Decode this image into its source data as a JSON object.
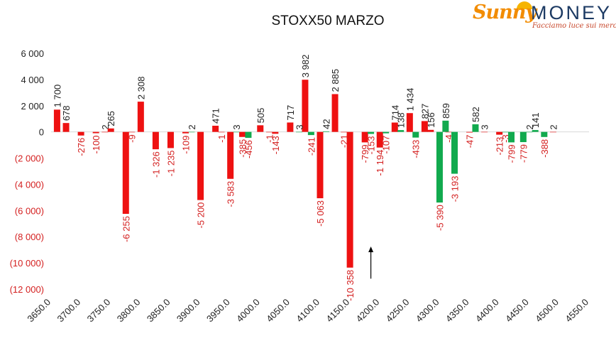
{
  "logo": {
    "brand_left": "Sunny",
    "brand_right": "MONEY",
    "tagline": "Facciamo luce sui mercati"
  },
  "chart_data": {
    "type": "bar",
    "title": "STOXX50 MARZO",
    "xlabel": "",
    "ylabel": "",
    "ylim": [
      -12000,
      6000
    ],
    "xlim": [
      3650,
      4550
    ],
    "grid": false,
    "y_ticks": [
      6000,
      4000,
      2000,
      0,
      -2000,
      -4000,
      -6000,
      -8000,
      -10000,
      -12000
    ],
    "y_tick_labels": [
      "6 000",
      "4 000",
      "2 000",
      "0",
      "(2 000)",
      "(4 000)",
      "(6 000)",
      "(8 000)",
      "(10 000)",
      "(12 000)"
    ],
    "x_ticks": [
      3650,
      3700,
      3750,
      3800,
      3850,
      3900,
      3950,
      4000,
      4050,
      4100,
      4150,
      4200,
      4250,
      4300,
      4350,
      4400,
      4450,
      4500,
      4550
    ],
    "x_tick_labels": [
      "3650.0",
      "3700.0",
      "3750.0",
      "3800.0",
      "3850.0",
      "3900.0",
      "3950.0",
      "4000.0",
      "4050.0",
      "4100.0",
      "4150.0",
      "4200.0",
      "4250.0",
      "4300.0",
      "4350.0",
      "4400.0",
      "4450.0",
      "4500.0",
      "4550.0"
    ],
    "colors": {
      "red": "#ee1111",
      "green": "#11aa4e",
      "positive_label": "#222222",
      "negative_label": "#d42020"
    },
    "series": [
      {
        "color": "red",
        "points": [
          {
            "x": 3660,
            "y": 1700,
            "label": "1 700"
          },
          {
            "x": 3675,
            "y": 678,
            "label": "678"
          },
          {
            "x": 3700,
            "y": -276,
            "label": "-276"
          },
          {
            "x": 3725,
            "y": -100,
            "label": "-100"
          },
          {
            "x": 3740,
            "y": 2,
            "label": "2"
          },
          {
            "x": 3750,
            "y": 265,
            "label": "265"
          },
          {
            "x": 3775,
            "y": -6255,
            "label": "-6 255"
          },
          {
            "x": 3785,
            "y": -9,
            "label": "-9"
          },
          {
            "x": 3800,
            "y": 2308,
            "label": "2 308"
          },
          {
            "x": 3825,
            "y": -1326,
            "label": "-1 326"
          },
          {
            "x": 3850,
            "y": -1235,
            "label": "-1 235"
          },
          {
            "x": 3875,
            "y": -109,
            "label": "-109"
          },
          {
            "x": 3900,
            "y": -5200,
            "label": "-5 200"
          },
          {
            "x": 3925,
            "y": 471,
            "label": "471"
          },
          {
            "x": 3935,
            "y": -1,
            "label": "-1"
          },
          {
            "x": 3950,
            "y": -3583,
            "label": "-3 583"
          },
          {
            "x": 3970,
            "y": -385,
            "label": "-385"
          },
          {
            "x": 4000,
            "y": 505,
            "label": "505"
          },
          {
            "x": 4015,
            "y": -1,
            "label": "-1"
          },
          {
            "x": 4025,
            "y": -143,
            "label": "-143"
          },
          {
            "x": 4050,
            "y": 717,
            "label": "717"
          },
          {
            "x": 4075,
            "y": 3982,
            "label": "3 982"
          },
          {
            "x": 4100,
            "y": -5063,
            "label": "-5 063"
          },
          {
            "x": 4125,
            "y": 2885,
            "label": "2 885"
          },
          {
            "x": 4140,
            "y": -21,
            "label": "-21"
          },
          {
            "x": 4150,
            "y": -10358,
            "label": "-10 358"
          },
          {
            "x": 4175,
            "y": -799,
            "label": "-799"
          },
          {
            "x": 4200,
            "y": -1194,
            "label": "-1 194"
          },
          {
            "x": 4225,
            "y": 714,
            "label": "714"
          },
          {
            "x": 4250,
            "y": 1434,
            "label": "1 434"
          },
          {
            "x": 4275,
            "y": 827,
            "label": "827"
          },
          {
            "x": 4285,
            "y": 156,
            "label": "156"
          },
          {
            "x": 4315,
            "y": -4,
            "label": "-4"
          },
          {
            "x": 4350,
            "y": -47,
            "label": "-47"
          },
          {
            "x": 4375,
            "y": 3,
            "label": "3"
          },
          {
            "x": 4400,
            "y": -213,
            "label": "-213"
          },
          {
            "x": 4490,
            "y": 2,
            "label": "2"
          }
        ]
      },
      {
        "color": "green",
        "points": [
          {
            "x": 3885,
            "y": 2,
            "label": "2"
          },
          {
            "x": 3960,
            "y": 3,
            "label": "3"
          },
          {
            "x": 3980,
            "y": -456,
            "label": "-456"
          },
          {
            "x": 4065,
            "y": 3,
            "label": "3"
          },
          {
            "x": 4085,
            "y": -241,
            "label": "-241"
          },
          {
            "x": 4110,
            "y": 42,
            "label": "42"
          },
          {
            "x": 4185,
            "y": -153,
            "label": "-153"
          },
          {
            "x": 4210,
            "y": -107,
            "label": "-107"
          },
          {
            "x": 4235,
            "y": 138,
            "label": "138"
          },
          {
            "x": 4260,
            "y": -433,
            "label": "-433"
          },
          {
            "x": 4300,
            "y": -5390,
            "label": "-5 390"
          },
          {
            "x": 4310,
            "y": 859,
            "label": "859"
          },
          {
            "x": 4325,
            "y": -3193,
            "label": "-3 193"
          },
          {
            "x": 4360,
            "y": 582,
            "label": "582"
          },
          {
            "x": 4410,
            "y": -3,
            "label": "-3"
          },
          {
            "x": 4420,
            "y": -799,
            "label": "-799"
          },
          {
            "x": 4440,
            "y": -779,
            "label": "-779"
          },
          {
            "x": 4450,
            "y": 2,
            "label": "2"
          },
          {
            "x": 4460,
            "y": 141,
            "label": "141"
          },
          {
            "x": 4475,
            "y": -388,
            "label": "-388"
          }
        ]
      }
    ],
    "annotations": [
      {
        "type": "arrow",
        "x": 4185,
        "y_from": -11200,
        "y_to": -8800
      }
    ]
  }
}
